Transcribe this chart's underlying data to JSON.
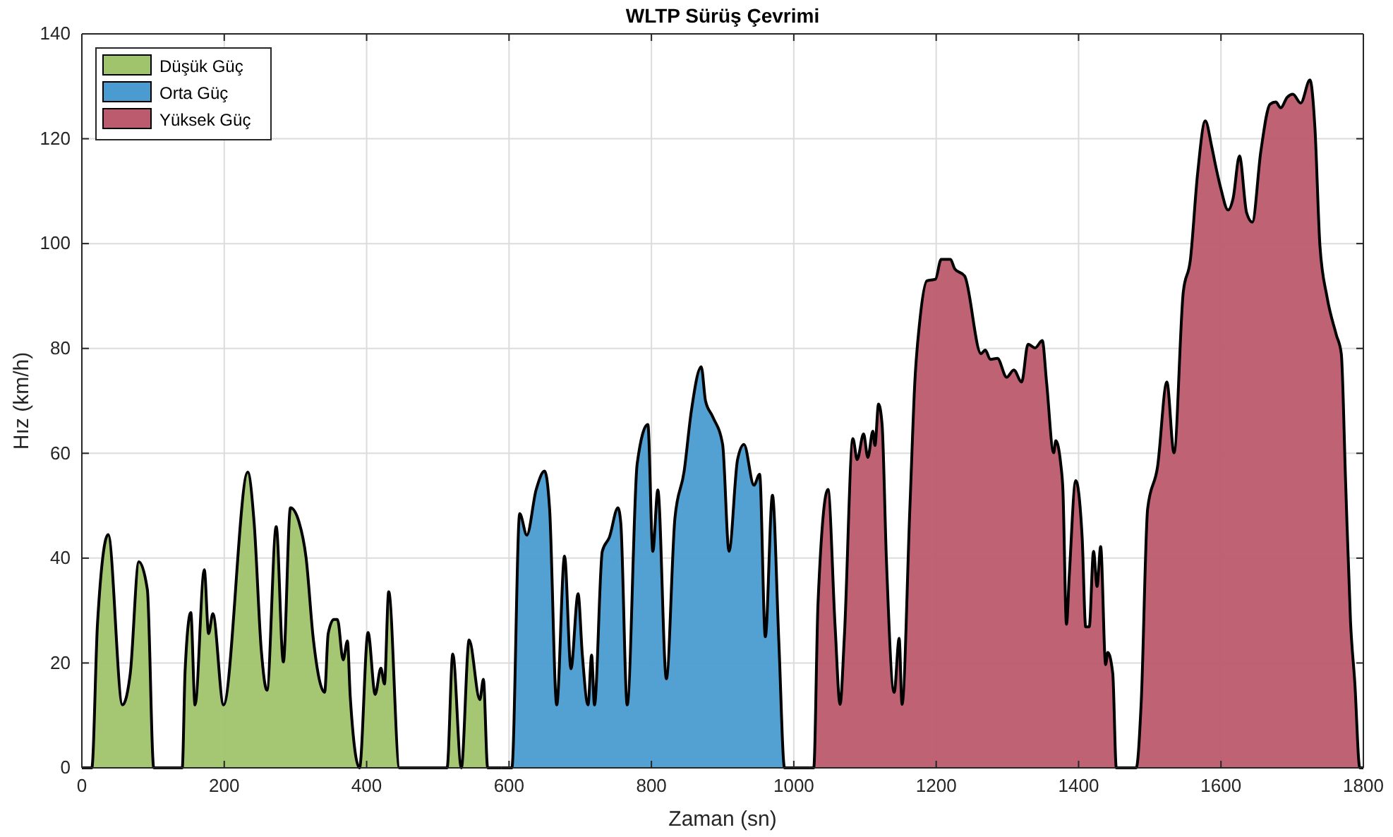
{
  "chart_data": {
    "type": "area",
    "title": "WLTP Sürüş Çevrimi",
    "xlabel": "Zaman (sn)",
    "ylabel": "Hız (km/h)",
    "xlim": [
      0,
      1800
    ],
    "xticks": [
      0,
      200,
      400,
      600,
      800,
      1000,
      1200,
      1400,
      1600,
      1800
    ],
    "ylim": [
      0,
      140
    ],
    "yticks": [
      0,
      20,
      40,
      60,
      80,
      100,
      120,
      140
    ],
    "grid": true,
    "legend": "top left",
    "series": [
      {
        "name": "Düşük Güç",
        "color": "#a0c46c",
        "x": [
          0,
          14,
          22,
          37,
          57,
          68,
          80,
          92,
          101,
          141,
          145,
          153,
          159,
          172,
          178,
          184,
          199,
          233,
          242,
          252,
          260,
          273,
          283,
          293,
          305,
          315,
          325,
          341,
          346,
          354,
          359,
          367,
          373,
          377,
          390,
          402,
          412,
          420,
          425,
          431,
          446,
          513,
          521,
          533,
          544,
          559,
          564,
          570,
          589
        ],
        "values": [
          0,
          0,
          27.6,
          44.5,
          12,
          18,
          39.3,
          34,
          0,
          0,
          18.5,
          29.6,
          12,
          37.8,
          25.6,
          29.4,
          12,
          56.4,
          46.7,
          22.5,
          14.8,
          46,
          20.2,
          49.6,
          46.9,
          40,
          24.7,
          14.4,
          25.6,
          28.3,
          28.3,
          20.6,
          24.2,
          13.5,
          0,
          25.8,
          14,
          19,
          16,
          33.6,
          0,
          0,
          21.7,
          0,
          24.4,
          13,
          16.9,
          0,
          0
        ]
      },
      {
        "name": "Orta Güç",
        "color": "#4a9bd0",
        "x": [
          589,
          604,
          615,
          625,
          638,
          650,
          657,
          667,
          678,
          687,
          697,
          703,
          711,
          716,
          720,
          731,
          741,
          753,
          757,
          766,
          780,
          795,
          802,
          809,
          821,
          833,
          846,
          856,
          870,
          876,
          886,
          900,
          909,
          921,
          930,
          944,
          952,
          960,
          970,
          979,
          987,
          1022
        ],
        "values": [
          0,
          0,
          48.5,
          44.4,
          53,
          56.6,
          49.4,
          12,
          40.4,
          18.9,
          33.2,
          21.5,
          12,
          21.5,
          12,
          41.3,
          44,
          49.6,
          46.7,
          12,
          58,
          65.5,
          41.3,
          53,
          17,
          47.6,
          56.6,
          68,
          76.5,
          70,
          67,
          61.7,
          41.3,
          58.8,
          61.7,
          53.9,
          56,
          25,
          52,
          24,
          0,
          0
        ]
      },
      {
        "name": "Yüksek Güç",
        "color": "#bc5b6d",
        "x": [
          1022,
          1028,
          1034,
          1048,
          1058,
          1065,
          1071,
          1083,
          1089,
          1098,
          1104,
          1111,
          1114,
          1119,
          1124,
          1130,
          1141,
          1148,
          1152,
          1163,
          1170,
          1177,
          1187,
          1199,
          1207,
          1220,
          1226,
          1240,
          1263,
          1269,
          1276,
          1286,
          1299,
          1309,
          1320,
          1329,
          1339,
          1349,
          1355,
          1365,
          1368,
          1375,
          1378,
          1383,
          1387,
          1396,
          1405,
          1410,
          1415,
          1421,
          1426,
          1431,
          1438,
          1441,
          1448,
          1453,
          1481,
          1488,
          1497,
          1511,
          1524,
          1534,
          1547,
          1557,
          1567,
          1578,
          1587,
          1593,
          1600,
          1610,
          1617,
          1626,
          1636,
          1644,
          1656,
          1669,
          1677,
          1684,
          1693,
          1701,
          1712,
          1725,
          1732,
          1739,
          1749,
          1762,
          1769,
          1775,
          1782,
          1788,
          1795,
          1800
        ],
        "values": [
          0,
          0,
          31.4,
          53.1,
          27,
          12.1,
          25,
          62.8,
          58.8,
          63.7,
          59.2,
          64.2,
          61.5,
          69.4,
          65.5,
          40,
          14.4,
          24.7,
          12.1,
          49.4,
          73.6,
          85.3,
          92.9,
          93.2,
          97,
          97,
          95.2,
          93.8,
          79,
          79.7,
          77.9,
          78.1,
          74.5,
          75.9,
          73.6,
          80.8,
          80.1,
          81.5,
          73.6,
          60.1,
          62.4,
          57.9,
          53,
          27.4,
          36.8,
          54.8,
          44,
          26.9,
          26.9,
          41.3,
          34.6,
          42.2,
          19.7,
          22,
          18,
          0,
          0,
          12.6,
          49.4,
          57.5,
          73.6,
          60.1,
          90.7,
          96.9,
          113.1,
          123.4,
          118.5,
          114.5,
          110.4,
          106.4,
          108.6,
          116.7,
          105.9,
          104.1,
          117.6,
          126.6,
          127,
          125.9,
          127.9,
          128.5,
          126.8,
          131.2,
          122,
          99.6,
          89.8,
          82.6,
          79,
          54.8,
          27.8,
          16.2,
          0,
          0
        ]
      }
    ]
  }
}
